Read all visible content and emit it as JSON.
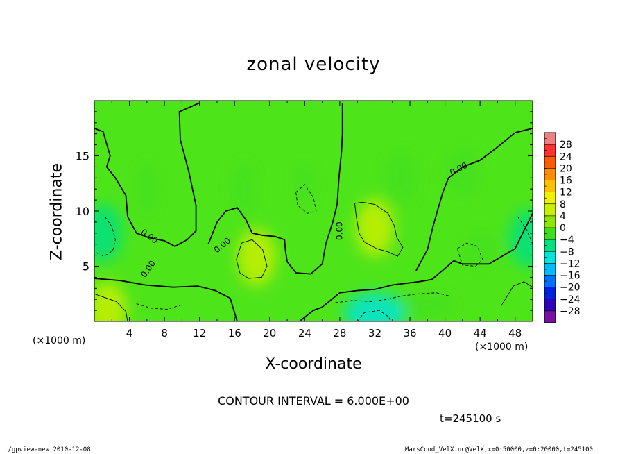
{
  "chart_data": {
    "type": "heatmap",
    "title": "zonal velocity",
    "xlabel": "X-coordinate",
    "ylabel": "Z-coordinate",
    "x_unit_label": "(×1000 m)",
    "x_unit_label_right": "(×1000 m)",
    "xlim": [
      0,
      50
    ],
    "ylim": [
      0,
      20
    ],
    "xticks": [
      4,
      8,
      12,
      16,
      20,
      24,
      28,
      32,
      36,
      40,
      44,
      48
    ],
    "yticks": [
      5,
      10,
      15
    ],
    "contour_interval_text": "CONTOUR INTERVAL = 6.000E+00",
    "contour_labels": [
      "0.00",
      "0.00",
      "0.00",
      "0.00",
      "0.00"
    ],
    "colorbar": {
      "levels": [
        28,
        24,
        20,
        16,
        12,
        8,
        4,
        0,
        -4,
        -8,
        -12,
        -16,
        -20,
        -24,
        -28
      ],
      "colors": [
        "#f08080",
        "#ff3030",
        "#ff5a00",
        "#ff8c00",
        "#ffc000",
        "#f0f000",
        "#c8f000",
        "#8ce600",
        "#3ede1e",
        "#00e080",
        "#00e4d8",
        "#00bcff",
        "#0070ff",
        "#0020e0",
        "#3000b8",
        "#7a10a0"
      ]
    },
    "features": [
      {
        "type": "max",
        "x": 18.5,
        "z": 5.8,
        "value": 6
      },
      {
        "type": "max",
        "x": 32,
        "z": 8.5,
        "value": 6
      },
      {
        "type": "max",
        "x": 1.5,
        "z": 1.0,
        "value": 6
      },
      {
        "type": "min",
        "x": 1.0,
        "z": 8.0,
        "value": -6
      },
      {
        "type": "min",
        "x": 32,
        "z": 0.8,
        "value": -12
      },
      {
        "type": "min",
        "x": 49.5,
        "z": 7.5,
        "value": -6
      }
    ]
  },
  "annotations": {
    "time": "t=245100 s",
    "footer_left": "./gpview-new  2010-12-08",
    "footer_right": "MarsCond_VelX.nc@VelX,x=0:50000,z=0:20000,t=245100"
  }
}
